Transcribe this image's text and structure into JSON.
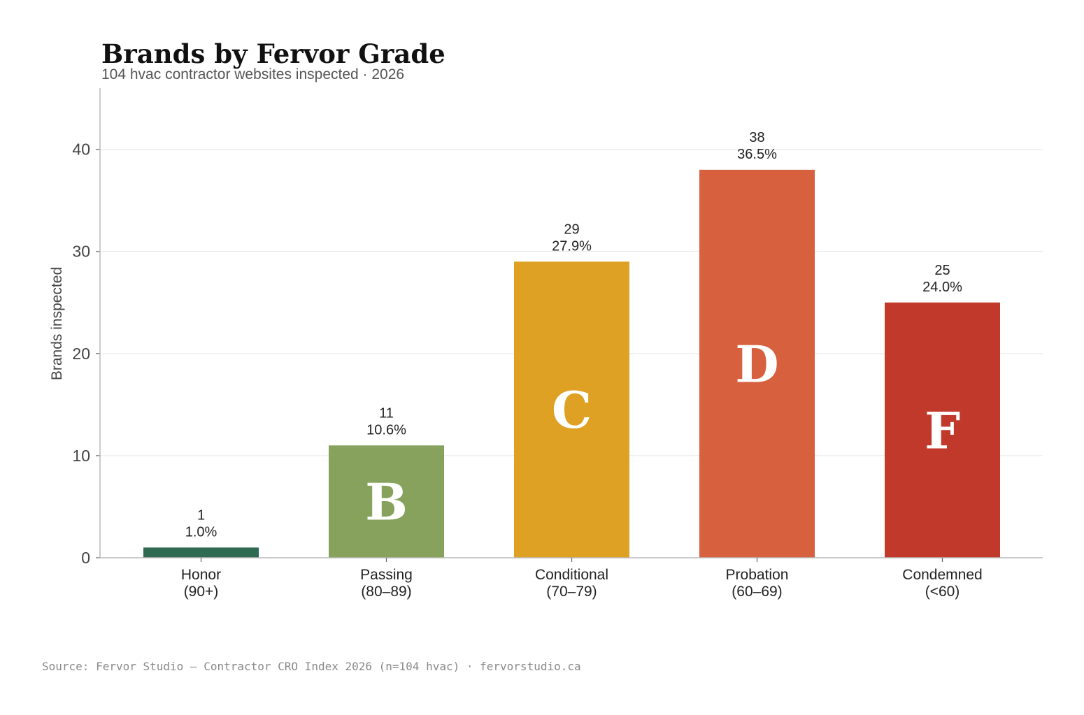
{
  "chart_data": {
    "type": "bar",
    "title": "Brands by Fervor Grade",
    "subtitle": "104 hvac contractor websites inspected · 2026",
    "xlabel": "",
    "ylabel": "Brands inspected",
    "ylim": [
      0,
      46
    ],
    "yticks": [
      0,
      10,
      20,
      30,
      40
    ],
    "grid": true,
    "categories": [
      {
        "name": "Honor",
        "range": "(90+)",
        "value": 1,
        "percent": "1.0%",
        "grade": "",
        "color": "#2e6b52"
      },
      {
        "name": "Passing",
        "range": "(80–89)",
        "value": 11,
        "percent": "10.6%",
        "grade": "B",
        "color": "#86a25c"
      },
      {
        "name": "Conditional",
        "range": "(70–79)",
        "value": 29,
        "percent": "27.9%",
        "grade": "C",
        "color": "#dea124"
      },
      {
        "name": "Probation",
        "range": "(60–69)",
        "value": 38,
        "percent": "36.5%",
        "grade": "D",
        "color": "#d7603f"
      },
      {
        "name": "Condemned",
        "range": "(<60)",
        "value": 25,
        "percent": "24.0%",
        "grade": "F",
        "color": "#c0392b"
      }
    ],
    "source": "Source: Fervor Studio — Contractor CRO Index 2026 (n=104 hvac) · fervorstudio.ca"
  }
}
